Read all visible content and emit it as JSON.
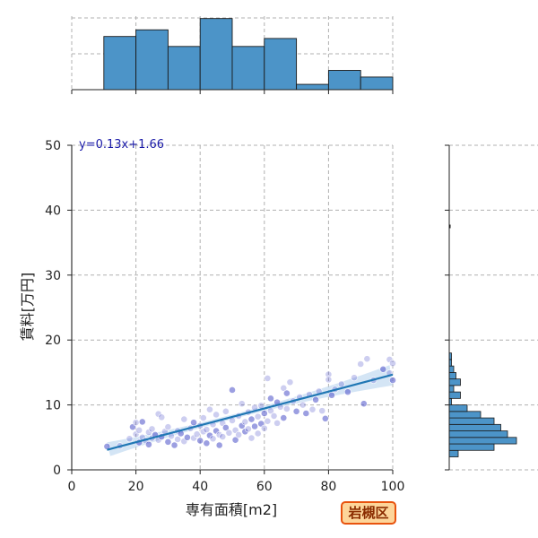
{
  "chart_data": {
    "type": "scatter",
    "xlabel": "専有面積[m2]",
    "ylabel": "賃料[万円]",
    "xlim": [
      0,
      100
    ],
    "ylim": [
      0,
      50
    ],
    "x_ticks": [
      0,
      20,
      40,
      60,
      80,
      100
    ],
    "y_ticks": [
      0,
      10,
      20,
      30,
      40,
      50
    ],
    "grid": true,
    "regression": {
      "equation": "y=0.13x+1.66",
      "slope": 0.13,
      "intercept": 1.66,
      "x_range": [
        11,
        100
      ]
    },
    "points": [
      {
        "x": 11,
        "y": 3.6
      },
      {
        "x": 15,
        "y": 3.7
      },
      {
        "x": 18,
        "y": 4.8
      },
      {
        "x": 19,
        "y": 6.6
      },
      {
        "x": 20,
        "y": 7.3
      },
      {
        "x": 20,
        "y": 5.5
      },
      {
        "x": 21,
        "y": 4.2
      },
      {
        "x": 21,
        "y": 6.1
      },
      {
        "x": 22,
        "y": 5.0
      },
      {
        "x": 22,
        "y": 7.4
      },
      {
        "x": 23,
        "y": 4.5
      },
      {
        "x": 24,
        "y": 5.8
      },
      {
        "x": 24,
        "y": 3.9
      },
      {
        "x": 25,
        "y": 6.3
      },
      {
        "x": 25,
        "y": 4.9
      },
      {
        "x": 26,
        "y": 5.4
      },
      {
        "x": 27,
        "y": 8.6
      },
      {
        "x": 27,
        "y": 4.6
      },
      {
        "x": 28,
        "y": 5.1
      },
      {
        "x": 28,
        "y": 8.1
      },
      {
        "x": 29,
        "y": 5.9
      },
      {
        "x": 30,
        "y": 4.3
      },
      {
        "x": 30,
        "y": 6.6
      },
      {
        "x": 31,
        "y": 5.2
      },
      {
        "x": 32,
        "y": 3.8
      },
      {
        "x": 33,
        "y": 6.0
      },
      {
        "x": 33,
        "y": 4.7
      },
      {
        "x": 34,
        "y": 5.6
      },
      {
        "x": 35,
        "y": 7.8
      },
      {
        "x": 35,
        "y": 4.4
      },
      {
        "x": 36,
        "y": 5.0
      },
      {
        "x": 37,
        "y": 6.4
      },
      {
        "x": 38,
        "y": 4.9
      },
      {
        "x": 38,
        "y": 7.3
      },
      {
        "x": 39,
        "y": 5.5
      },
      {
        "x": 40,
        "y": 6.8
      },
      {
        "x": 40,
        "y": 4.5
      },
      {
        "x": 41,
        "y": 8.0
      },
      {
        "x": 41,
        "y": 5.9
      },
      {
        "x": 42,
        "y": 4.1
      },
      {
        "x": 42,
        "y": 6.2
      },
      {
        "x": 43,
        "y": 9.3
      },
      {
        "x": 43,
        "y": 5.3
      },
      {
        "x": 44,
        "y": 7.0
      },
      {
        "x": 44,
        "y": 4.8
      },
      {
        "x": 45,
        "y": 6.0
      },
      {
        "x": 45,
        "y": 8.5
      },
      {
        "x": 46,
        "y": 5.4
      },
      {
        "x": 46,
        "y": 3.8
      },
      {
        "x": 47,
        "y": 7.2
      },
      {
        "x": 47,
        "y": 5.1
      },
      {
        "x": 48,
        "y": 6.5
      },
      {
        "x": 48,
        "y": 9.0
      },
      {
        "x": 49,
        "y": 5.7
      },
      {
        "x": 50,
        "y": 12.3
      },
      {
        "x": 50,
        "y": 7.6
      },
      {
        "x": 51,
        "y": 6.1
      },
      {
        "x": 51,
        "y": 4.6
      },
      {
        "x": 52,
        "y": 8.3
      },
      {
        "x": 52,
        "y": 5.4
      },
      {
        "x": 53,
        "y": 6.8
      },
      {
        "x": 53,
        "y": 10.2
      },
      {
        "x": 54,
        "y": 7.4
      },
      {
        "x": 54,
        "y": 5.9
      },
      {
        "x": 55,
        "y": 8.9
      },
      {
        "x": 55,
        "y": 6.3
      },
      {
        "x": 56,
        "y": 7.8
      },
      {
        "x": 56,
        "y": 4.9
      },
      {
        "x": 57,
        "y": 9.6
      },
      {
        "x": 57,
        "y": 6.7
      },
      {
        "x": 58,
        "y": 8.2
      },
      {
        "x": 58,
        "y": 5.6
      },
      {
        "x": 59,
        "y": 7.1
      },
      {
        "x": 59,
        "y": 9.9
      },
      {
        "x": 60,
        "y": 6.4
      },
      {
        "x": 60,
        "y": 8.7
      },
      {
        "x": 61,
        "y": 14.1
      },
      {
        "x": 61,
        "y": 7.5
      },
      {
        "x": 62,
        "y": 11.0
      },
      {
        "x": 62,
        "y": 9.1
      },
      {
        "x": 63,
        "y": 8.3
      },
      {
        "x": 64,
        "y": 10.4
      },
      {
        "x": 64,
        "y": 7.2
      },
      {
        "x": 65,
        "y": 9.7
      },
      {
        "x": 66,
        "y": 8.0
      },
      {
        "x": 66,
        "y": 12.6
      },
      {
        "x": 67,
        "y": 9.4
      },
      {
        "x": 67,
        "y": 11.8
      },
      {
        "x": 68,
        "y": 13.5
      },
      {
        "x": 69,
        "y": 10.6
      },
      {
        "x": 70,
        "y": 9.0
      },
      {
        "x": 71,
        "y": 11.2
      },
      {
        "x": 72,
        "y": 10.0
      },
      {
        "x": 73,
        "y": 8.7
      },
      {
        "x": 74,
        "y": 11.6
      },
      {
        "x": 75,
        "y": 9.3
      },
      {
        "x": 76,
        "y": 10.8
      },
      {
        "x": 77,
        "y": 12.1
      },
      {
        "x": 78,
        "y": 9.1
      },
      {
        "x": 79,
        "y": 7.9
      },
      {
        "x": 80,
        "y": 14.7
      },
      {
        "x": 80,
        "y": 13.9
      },
      {
        "x": 81,
        "y": 11.5
      },
      {
        "x": 82,
        "y": 12.4
      },
      {
        "x": 84,
        "y": 13.2
      },
      {
        "x": 86,
        "y": 12.0
      },
      {
        "x": 88,
        "y": 14.2
      },
      {
        "x": 90,
        "y": 16.3
      },
      {
        "x": 91,
        "y": 10.2
      },
      {
        "x": 92,
        "y": 17.1
      },
      {
        "x": 94,
        "y": 13.8
      },
      {
        "x": 97,
        "y": 15.5
      },
      {
        "x": 99,
        "y": 17.0
      },
      {
        "x": 100,
        "y": 16.4
      },
      {
        "x": 100,
        "y": 13.8
      },
      {
        "x": 99,
        "y": 14.9
      }
    ],
    "x_histogram": {
      "bin_edges": [
        0,
        10,
        20,
        30,
        40,
        50,
        60,
        70,
        80,
        90,
        100
      ],
      "counts": [
        0,
        8,
        9,
        6.5,
        10.7,
        6.5,
        7.7,
        0.8,
        2.9,
        1.9
      ]
    },
    "y_histogram": {
      "bin_edges": [
        2,
        3,
        4,
        5,
        6,
        7,
        8,
        9,
        10,
        11,
        12,
        13,
        14,
        15,
        16,
        17,
        18
      ],
      "counts": [
        4,
        20,
        30,
        26,
        23,
        20,
        14,
        8,
        1,
        5,
        2,
        5,
        3,
        2,
        1,
        1
      ],
      "outlier": {
        "y": 37.5,
        "count": 0.3
      }
    },
    "colors": {
      "point": "#4a50c8",
      "bar": "#4c94c8",
      "line": "#1f77b4",
      "ci": "#b7d4ee"
    }
  },
  "badge": {
    "label": "岩槻区"
  }
}
